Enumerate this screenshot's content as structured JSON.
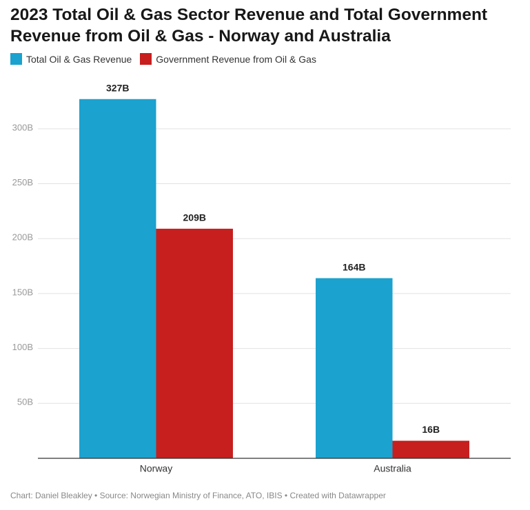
{
  "chart_data": {
    "type": "grouped-bar",
    "title": "2023 Total Oil & Gas Sector Revenue and Total Government Revenue from Oil & Gas - Norway and Australia",
    "categories": [
      "Norway",
      "Australia"
    ],
    "series": [
      {
        "name": "Total Oil & Gas Revenue",
        "color": "#1ba2cf",
        "values": [
          327,
          164
        ],
        "value_labels": [
          "327B",
          "164B"
        ]
      },
      {
        "name": "Government Revenue from Oil & Gas",
        "color": "#c71e1e",
        "values": [
          209,
          16
        ],
        "value_labels": [
          "209B",
          "16B"
        ]
      }
    ],
    "ylim": [
      0,
      330
    ],
    "yticks": [
      {
        "value": 50,
        "label": "50B"
      },
      {
        "value": 100,
        "label": "100B"
      },
      {
        "value": 150,
        "label": "150B"
      },
      {
        "value": 200,
        "label": "200B"
      },
      {
        "value": 250,
        "label": "250B"
      },
      {
        "value": 300,
        "label": "300B"
      }
    ],
    "grid": true,
    "source": "Chart: Daniel Bleakley • Source: Norwegian Ministry of Finance, ATO, IBIS • Created with Datawrapper"
  }
}
